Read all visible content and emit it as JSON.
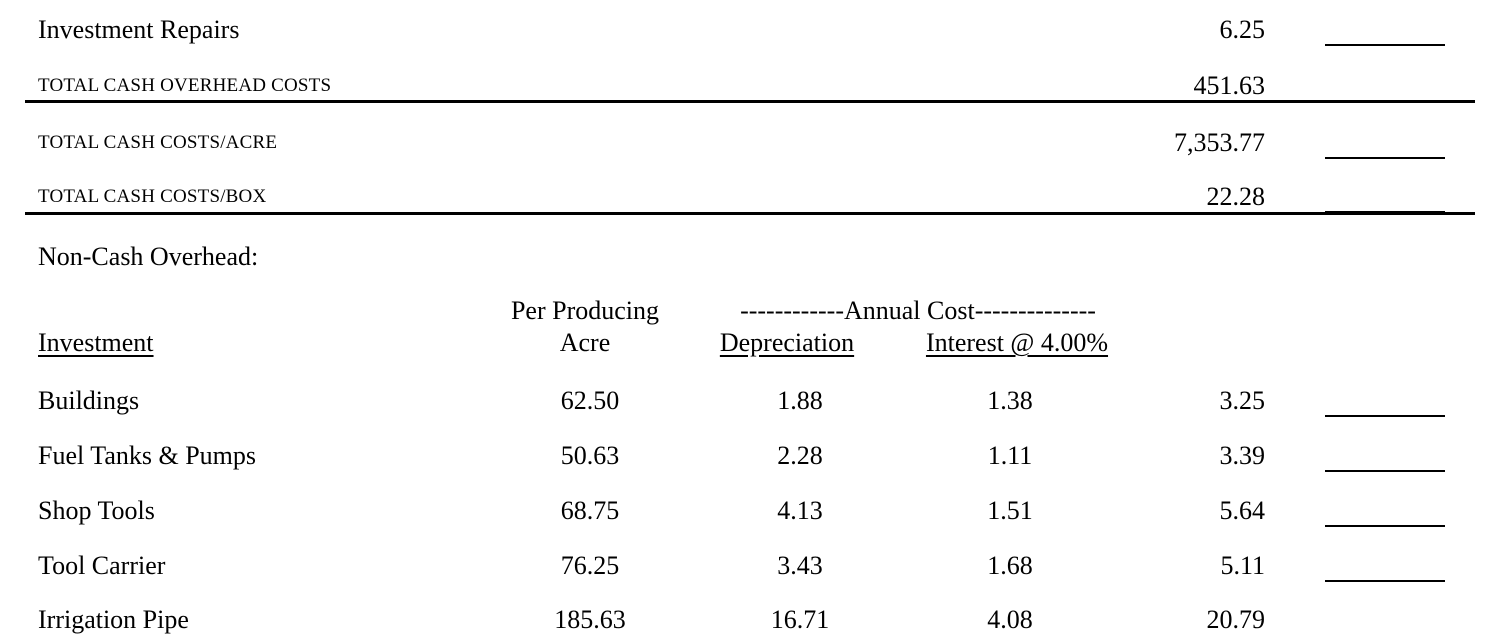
{
  "summary_rows": [
    {
      "label": "Investment Repairs",
      "value": "6.25"
    },
    {
      "label": "TOTAL CASH OVERHEAD COSTS",
      "value": "451.63"
    },
    {
      "label": "TOTAL CASH COSTS/ACRE",
      "value": "7,353.77"
    },
    {
      "label": "TOTAL CASH COSTS/BOX",
      "value": "22.28"
    }
  ],
  "section_title": "Non-Cash Overhead:",
  "table": {
    "header": {
      "investment": "Investment",
      "per_acre_line1": "Per Producing",
      "per_acre_line2": "Acre",
      "annual_cost": "------------Annual Cost--------------",
      "depreciation": "Depreciation",
      "interest": "Interest @ 4.00%"
    },
    "rows": [
      [
        "Buildings",
        "62.50",
        "1.88",
        "1.38",
        "3.25"
      ],
      [
        "Fuel Tanks & Pumps",
        "50.63",
        "2.28",
        "1.11",
        "3.39"
      ],
      [
        "Shop Tools",
        "68.75",
        "4.13",
        "1.51",
        "5.64"
      ],
      [
        "Tool Carrier",
        "76.25",
        "3.43",
        "1.68",
        "5.11"
      ],
      [
        "Irrigation Pipe",
        "185.63",
        "16.71",
        "4.08",
        "20.79"
      ]
    ]
  }
}
